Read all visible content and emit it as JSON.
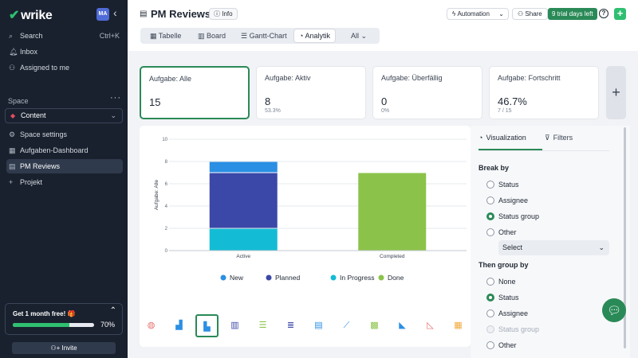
{
  "sidebar": {
    "logo": "wrike",
    "avatar": "MA",
    "search_label": "Search",
    "search_shortcut": "Ctrl+K",
    "inbox_label": "Inbox",
    "assigned_label": "Assigned to me",
    "space_label": "Space",
    "space_selected": "Content",
    "items": [
      {
        "label": "Space settings"
      },
      {
        "label": "Aufgaben-Dashboard"
      },
      {
        "label": "PM Reviews"
      },
      {
        "label": "Projekt"
      }
    ],
    "trial": {
      "title": "Get 1 month free! 🎁",
      "progress": 0.7,
      "progress_label": "70%"
    },
    "invite_label": "Invite"
  },
  "header": {
    "title": "PM Reviews",
    "info_label": "Info",
    "automation_label": "Automation",
    "share_label": "Share",
    "trial_days": "9 trial days left",
    "help_label": "?"
  },
  "tabs": [
    {
      "label": "Tabelle"
    },
    {
      "label": "Board"
    },
    {
      "label": "Gantt-Chart"
    },
    {
      "label": "Analytik"
    },
    {
      "label": "All"
    }
  ],
  "cards": [
    {
      "label": "Aufgabe: Alle",
      "value": "15",
      "sub": ""
    },
    {
      "label": "Aufgabe: Aktiv",
      "value": "8",
      "sub": "53.3%"
    },
    {
      "label": "Aufgabe: Überfällig",
      "value": "0",
      "sub": "0%"
    },
    {
      "label": "Aufgabe: Fortschritt",
      "value": "46.7%",
      "sub": "7 / 15"
    }
  ],
  "chart_data": {
    "type": "bar",
    "stacked": true,
    "categories": [
      "Active",
      "Completed"
    ],
    "ylabel": "Aufgabe: Alle",
    "ylim": [
      0,
      10
    ],
    "yticks": [
      0,
      2,
      4,
      6,
      8,
      10
    ],
    "series": [
      {
        "name": "New",
        "color": "#2b8fe3",
        "values": [
          1,
          0
        ]
      },
      {
        "name": "Planned",
        "color": "#3b48a8",
        "values": [
          5,
          0
        ]
      },
      {
        "name": "In Progress",
        "color": "#13bcd4",
        "values": [
          2,
          0
        ]
      },
      {
        "name": "Done",
        "color": "#8bc34a",
        "values": [
          0,
          7
        ]
      }
    ],
    "legend_position": "bottom"
  },
  "right_panel": {
    "tab_visualization": "Visualization",
    "tab_filters": "Filters",
    "break_by_label": "Break by",
    "break_by_options": [
      {
        "label": "Status",
        "checked": false
      },
      {
        "label": "Assignee",
        "checked": false
      },
      {
        "label": "Status group",
        "checked": true
      },
      {
        "label": "Other",
        "checked": false
      }
    ],
    "select_value": "Select",
    "then_group_by_label": "Then group by",
    "then_group_by_options": [
      {
        "label": "None",
        "checked": false
      },
      {
        "label": "Status",
        "checked": true
      },
      {
        "label": "Assignee",
        "checked": false
      },
      {
        "label": "Status group",
        "checked": false,
        "disabled": true
      },
      {
        "label": "Other",
        "checked": false
      }
    ]
  },
  "viz_types": [
    "donut-chart-icon",
    "bar-chart-icon",
    "grouped-bar-chart-icon",
    "stacked-bar-chart-icon",
    "horizontal-bar-icon",
    "horizontal-stacked-icon",
    "horizontal-grouped-icon",
    "line-chart-icon",
    "stacked-column-100-icon",
    "area-chart-icon",
    "stacked-area-chart-icon",
    "stacked-area-100-icon"
  ]
}
